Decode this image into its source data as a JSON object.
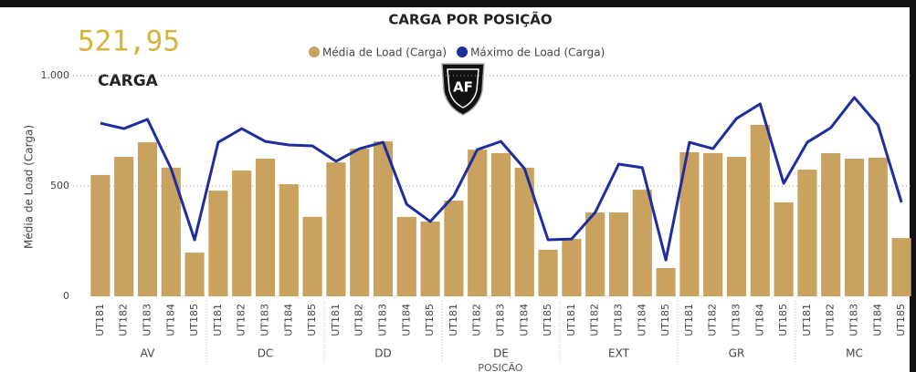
{
  "kpi": {
    "value": "521,95",
    "label": "CARGA"
  },
  "chart_data": {
    "type": "bar_line",
    "title": "CARGA POR POSIÇÃO",
    "categories": [
      "UT181",
      "UT182",
      "UT183",
      "UT184",
      "UT185",
      "UT181",
      "UT182",
      "UT183",
      "UT184",
      "UT185",
      "UT181",
      "UT182",
      "UT183",
      "UT184",
      "UT185",
      "UT181",
      "UT182",
      "UT183",
      "UT184",
      "UT185",
      "UT181",
      "UT182",
      "UT183",
      "UT184",
      "UT185",
      "UT181",
      "UT182",
      "UT183",
      "UT184",
      "UT185",
      "UT181",
      "UT182",
      "UT183",
      "UT184",
      "UT185"
    ],
    "category_groups": [
      "AV",
      "DC",
      "DD",
      "DE",
      "EXT",
      "GR",
      "MC"
    ],
    "series": [
      {
        "name": "Média de Load (Carga)",
        "type": "bar",
        "color": "#c8a25e",
        "values": [
          550,
          632,
          698,
          583,
          198,
          479,
          570,
          624,
          508,
          360,
          607,
          669,
          702,
          360,
          339,
          434,
          665,
          649,
          583,
          211,
          260,
          380,
          380,
          483,
          128,
          653,
          649,
          632,
          777,
          426,
          574,
          649,
          624,
          628,
          264
        ]
      },
      {
        "name": "Máximo de Load (Carga)",
        "type": "line",
        "color": "#1f2e9e",
        "values": [
          785,
          760,
          802,
          579,
          256,
          698,
          760,
          702,
          686,
          682,
          612,
          669,
          698,
          417,
          339,
          455,
          665,
          702,
          579,
          256,
          260,
          380,
          599,
          583,
          165,
          698,
          669,
          806,
          872,
          512,
          698,
          764,
          901,
          777,
          426
        ]
      }
    ],
    "y_label": "Média de Load (Carga)",
    "x_label": "POSIÇÃO",
    "ylim": [
      0,
      1000
    ],
    "yticks": [
      0,
      500,
      {
        "value": 1000,
        "label": "1.000"
      }
    ],
    "grid": true,
    "legend": "top"
  }
}
